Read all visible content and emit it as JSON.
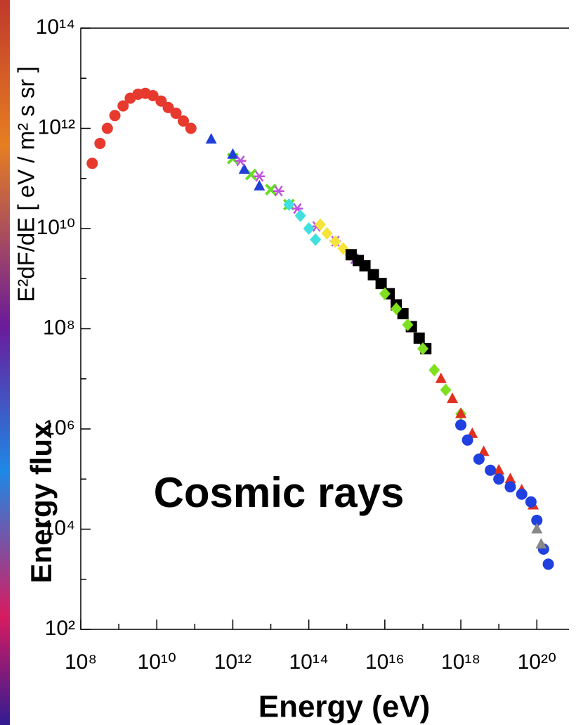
{
  "chart_data": {
    "type": "scatter",
    "log_scale": true,
    "y_label": "E²dF/dE [ eV / m² s sr ]",
    "annotation_y": "Energy flux",
    "annotation": "Cosmic rays",
    "x_label": "Energy (eV)",
    "xlim": [
      100000000.0,
      7e+20
    ],
    "ylim": [
      100.0,
      100000000000000.0
    ],
    "xticks": [
      {
        "value": 100000000.0,
        "label": "10⁸"
      },
      {
        "value": 10000000000.0,
        "label": "10¹⁰"
      },
      {
        "value": 1000000000000.0,
        "label": "10¹²"
      },
      {
        "value": 100000000000000.0,
        "label": "10¹⁴"
      },
      {
        "value": 1e+16,
        "label": "10¹⁶"
      },
      {
        "value": 1e+18,
        "label": "10¹⁸"
      },
      {
        "value": 1e+20,
        "label": "10²⁰"
      }
    ],
    "xminorticks": [
      1000000000.0,
      100000000000.0,
      10000000000000.0,
      1000000000000000.0,
      1e+17,
      1e+19
    ],
    "yticks": [
      {
        "value": 100.0,
        "label": "10²"
      },
      {
        "value": 10000.0,
        "label": "10⁴"
      },
      {
        "value": 1000000.0,
        "label": "10⁶"
      },
      {
        "value": 100000000.0,
        "label": "10⁸"
      },
      {
        "value": 10000000000.0,
        "label": "10¹⁰"
      },
      {
        "value": 1000000000000.0,
        "label": "10¹²"
      },
      {
        "value": 100000000000000.0,
        "label": "10¹⁴"
      }
    ],
    "yminorticks": [
      1000.0,
      100000.0,
      10000000.0,
      1000000000.0,
      100000000000.0,
      10000000000000.0
    ],
    "series": [
      {
        "color": "#e8392e",
        "marker": "circle",
        "x": [
          200000000.0,
          320000000.0,
          500000000.0,
          790000000.0,
          1300000000.0,
          2000000000.0,
          3200000000.0,
          5000000000.0,
          7900000000.0,
          13000000000.0,
          20000000000.0,
          32000000000.0,
          50000000000.0,
          79000000000.0
        ],
        "values": [
          200000000000.0,
          500000000000.0,
          1000000000000.0,
          1800000000000.0,
          2800000000000.0,
          4000000000000.0,
          4800000000000.0,
          5000000000000.0,
          4500000000000.0,
          3500000000000.0,
          2600000000000.0,
          2000000000000.0,
          1400000000000.0,
          1000000000000.0
        ]
      },
      {
        "color": "#66dd22",
        "marker": "cross",
        "x": [
          1000000000000.0,
          3000000000000.0,
          10000000000000.0,
          30000000000000.0
        ],
        "values": [
          250000000000.0,
          120000000000.0,
          60000000000.0,
          30000000000.0
        ]
      },
      {
        "color": "#1f3fd8",
        "marker": "triangle",
        "x": [
          270000000000.0,
          1000000000000.0,
          2000000000000.0,
          5000000000000.0
        ],
        "values": [
          600000000000.0,
          300000000000.0,
          150000000000.0,
          70000000000.0
        ]
      },
      {
        "color": "#c050e0",
        "marker": "asterisk",
        "x": [
          1600000000000.0,
          5000000000000.0,
          16000000000000.0,
          50000000000000.0,
          160000000000000.0,
          500000000000000.0,
          1600000000000000.0
        ],
        "values": [
          224000000000.0,
          110000000000.0,
          56000000000.0,
          25000000000.0,
          11000000000.0,
          5600000000.0,
          2500000000.0
        ]
      },
      {
        "color": "#40e0e0",
        "marker": "diamond",
        "x": [
          30000000000000.0,
          60000000000000.0,
          100000000000000.0,
          150000000000000.0
        ],
        "values": [
          30000000000.0,
          18000000000.0,
          10000000000.0,
          6000000000.0
        ]
      },
      {
        "color": "#f5e43a",
        "marker": "diamond",
        "x": [
          200000000000000.0,
          300000000000000.0,
          500000000000000.0,
          800000000000000.0,
          1200000000000000.0
        ],
        "values": [
          12000000000.0,
          8000000000.0,
          5500000000.0,
          4000000000.0,
          3000000000.0
        ]
      },
      {
        "color": "#000000",
        "marker": "square",
        "x": [
          1300000000000000.0,
          2000000000000000.0,
          3000000000000000.0,
          5000000000000000.0,
          8000000000000000.0,
          1.3e+16,
          2e+16,
          3e+16,
          5e+16,
          8e+16,
          1.2e+17
        ],
        "values": [
          3000000000.0,
          2300000000.0,
          1800000000.0,
          1200000000.0,
          800000000.0,
          500000000.0,
          300000000.0,
          200000000.0,
          110000000.0,
          65000000.0,
          40000000.0
        ]
      },
      {
        "color": "#7fe020",
        "marker": "diamond",
        "x": [
          1e+16,
          2e+16,
          4e+16,
          1e+17,
          2e+17,
          4e+17,
          1e+18
        ],
        "values": [
          500000000.0,
          250000000.0,
          120000000.0,
          40000000.0,
          15000000.0,
          6000000.0,
          2000000.0
        ]
      },
      {
        "color": "#e03020",
        "marker": "triangle",
        "x": [
          3e+17,
          6e+17,
          1e+18,
          2e+18,
          4e+18,
          1e+19,
          2e+19,
          4e+19,
          8e+19
        ],
        "values": [
          10000000.0,
          4000000.0,
          2000000.0,
          800000.0,
          350000.0,
          150000.0,
          100000.0,
          60000.0,
          30000.0
        ]
      },
      {
        "color": "#2040e0",
        "marker": "circle",
        "x": [
          1e+18,
          1.5e+18,
          3e+18,
          6e+18,
          1e+19,
          2e+19,
          4e+19,
          7e+19,
          1e+20,
          1.5e+20,
          2e+20
        ],
        "values": [
          1200000.0,
          600000.0,
          250000.0,
          150000.0,
          100000.0,
          70000.0,
          50000.0,
          35000.0,
          15000.0,
          4000.0,
          2000.0
        ]
      },
      {
        "color": "#888888",
        "marker": "triangle",
        "x": [
          1e+20,
          1.3e+20
        ],
        "values": [
          10000.0,
          5000.0
        ]
      }
    ]
  }
}
